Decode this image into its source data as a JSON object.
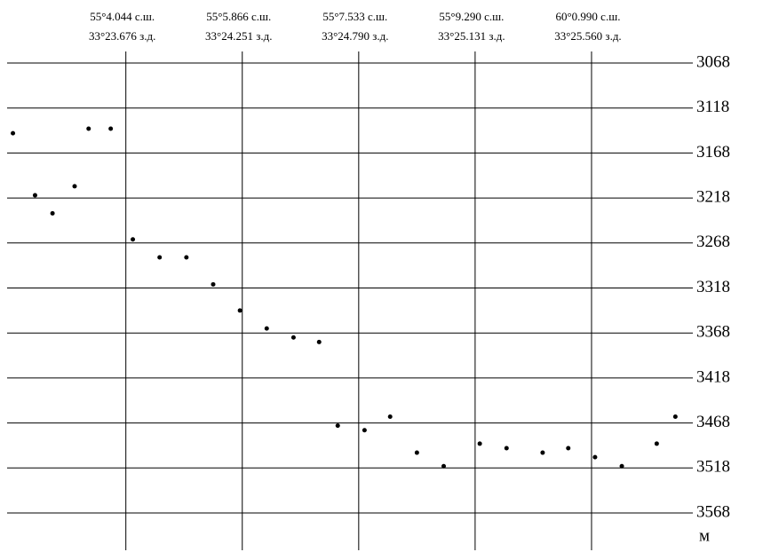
{
  "chart_data": {
    "type": "scatter",
    "y_unit": "м",
    "xtick_labels": [
      [
        "55°4.044 с.ш.",
        "33°23.676 з.д."
      ],
      [
        "55°5.866 с.ш.",
        "33°24.251 з.д."
      ],
      [
        "55°7.533 с.ш.",
        "33°24.790 з.д."
      ],
      [
        "55°9.290 с.ш.",
        "33°25.131 з.д."
      ],
      [
        "60°0.990 с.ш.",
        "33°25.560 з.д."
      ]
    ],
    "xticks": [
      0,
      1,
      2,
      3,
      4
    ],
    "xlim": [
      -1.02,
      4.87
    ],
    "ylim": [
      3568,
      3068
    ],
    "yticks": [
      3068,
      3118,
      3168,
      3218,
      3268,
      3318,
      3368,
      3418,
      3468,
      3518,
      3568
    ],
    "grid": true,
    "color": "#000000",
    "x": [
      -0.97,
      -0.78,
      -0.63,
      -0.44,
      -0.32,
      -0.13,
      0.06,
      0.29,
      0.52,
      0.75,
      0.98,
      1.21,
      1.44,
      1.66,
      1.82,
      2.05,
      2.27,
      2.5,
      2.73,
      3.04,
      3.27,
      3.58,
      3.8,
      4.03,
      4.26,
      4.56,
      4.72
    ],
    "values": [
      3146,
      3215,
      3235,
      3205,
      3141,
      3141,
      3264,
      3284,
      3284,
      3314,
      3343,
      3363,
      3373,
      3378,
      3471,
      3476,
      3461,
      3501,
      3516,
      3491,
      3496,
      3501,
      3496,
      3506,
      3516,
      3491,
      3461
    ]
  }
}
